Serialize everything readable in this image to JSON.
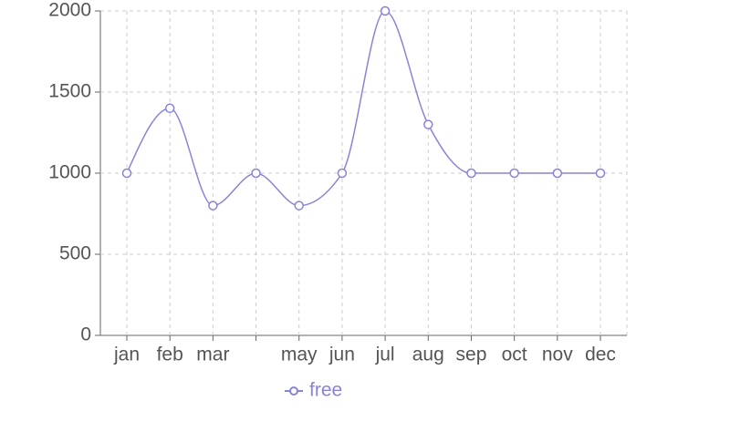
{
  "chart_data": {
    "type": "line",
    "categories": [
      "jan",
      "feb",
      "mar",
      null,
      "may",
      "jun",
      "jul",
      "aug",
      "sep",
      "oct",
      "nov",
      "dec"
    ],
    "series": [
      {
        "name": "free",
        "color": "#8884d8",
        "values": [
          1000,
          1400,
          800,
          1000,
          800,
          1000,
          2000,
          1300,
          1000,
          1000,
          1000,
          1000
        ]
      }
    ],
    "ylim": [
      0,
      2000
    ],
    "yticks": [
      0,
      500,
      1000,
      1500,
      2000
    ],
    "grid": true,
    "legend": "bottom"
  }
}
